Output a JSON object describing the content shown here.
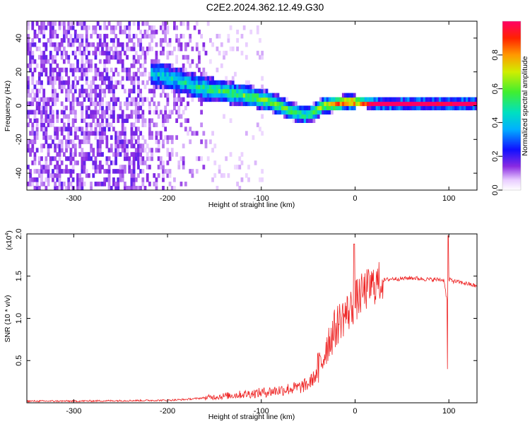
{
  "title": "C2E2.2024.362.12.49.G30",
  "chart_data": [
    {
      "type": "heatmap",
      "xlabel": "Height of straight line (km)",
      "ylabel": "Frequency (Hz)",
      "xlim": [
        -350,
        130
      ],
      "ylim": [
        -50,
        50
      ],
      "xticks": [
        -300,
        -200,
        -100,
        0,
        100
      ],
      "yticks": [
        -40,
        -20,
        0,
        20,
        40
      ],
      "xtick_labels": [
        "-300",
        "-200",
        "-100",
        "0",
        "100"
      ],
      "ytick_labels": [
        "-40",
        "-20",
        "0",
        "20",
        "40"
      ],
      "colorbar": {
        "label": "Normalized spectral amplitude",
        "range": [
          0,
          1
        ],
        "ticks": [
          0.0,
          0.2,
          0.4,
          0.6,
          0.8
        ],
        "tick_labels": [
          "0.0",
          "0.2",
          "0.4",
          "0.6",
          "0.8"
        ]
      },
      "ridge": {
        "description_points_x": [
          -215,
          -190,
          -170,
          -150,
          -130,
          -110,
          -90,
          -70,
          -55,
          -45,
          -35,
          -20,
          -10,
          0,
          20,
          60,
          100,
          130
        ],
        "frequency_y": [
          18,
          14,
          10,
          8,
          6,
          4,
          1,
          -4,
          -7,
          -5,
          -1,
          0,
          1,
          1,
          0,
          0,
          0,
          0
        ],
        "amplitude": [
          0.3,
          0.35,
          0.4,
          0.45,
          0.45,
          0.5,
          0.55,
          0.5,
          0.45,
          0.5,
          0.6,
          0.75,
          0.85,
          0.9,
          0.95,
          0.92,
          0.9,
          0.88
        ]
      }
    },
    {
      "type": "line",
      "xlabel": "Height of straight line (km)",
      "ylabel": "SNR (10 * v/v)",
      "y_multiplier": "(x10",
      "y_multiplier_exp": "4",
      "y_multiplier_close": ")",
      "xlim": [
        -350,
        130
      ],
      "ylim": [
        0,
        2.0
      ],
      "xticks": [
        -300,
        -200,
        -100,
        0,
        100
      ],
      "yticks": [
        0.5,
        1.0,
        1.5,
        2.0
      ],
      "xtick_labels": [
        "-300",
        "-200",
        "-100",
        "0",
        "100"
      ],
      "ytick_labels": [
        "0.5",
        "1.0",
        "1.5",
        "2.0"
      ],
      "series": [
        {
          "color": "#ee2222",
          "x": [
            -350,
            -300,
            -250,
            -200,
            -180,
            -160,
            -140,
            -120,
            -100,
            -80,
            -60,
            -50,
            -40,
            -35,
            -30,
            -25,
            -20,
            -15,
            -10,
            -5,
            0,
            10,
            20,
            30,
            40,
            50,
            60,
            70,
            80,
            90,
            95,
            98,
            100,
            102,
            105,
            110,
            120,
            130
          ],
          "y": [
            0.02,
            0.02,
            0.025,
            0.03,
            0.04,
            0.06,
            0.08,
            0.1,
            0.12,
            0.15,
            0.18,
            0.22,
            0.35,
            0.5,
            0.7,
            0.8,
            0.9,
            1.0,
            1.05,
            1.1,
            1.2,
            1.32,
            1.4,
            1.45,
            1.47,
            1.47,
            1.48,
            1.47,
            1.46,
            1.46,
            1.45,
            1.2,
            1.45,
            1.46,
            1.44,
            1.43,
            1.41,
            1.38
          ]
        }
      ]
    }
  ]
}
